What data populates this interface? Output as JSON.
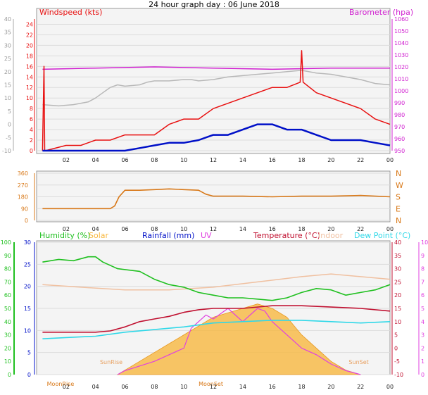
{
  "title": "24 hour graph day : 06 June 2018",
  "colors": {
    "wind": "#e81010",
    "wind_avg": "#0010c8",
    "baro": "#d020d0",
    "temp_grey": "#b8b8b8",
    "dir": "#d87818",
    "humidity": "#20c020",
    "solar": "#f8b840",
    "rain": "#0010c8",
    "uv": "#e040e0",
    "temperature": "#c01030",
    "indoor": "#f0c0a0",
    "dewpoint": "#30d8e8",
    "grid": "#dcdcdc",
    "plot_bg": "#f4f4f4"
  },
  "x_ticks": [
    "02",
    "04",
    "06",
    "08",
    "10",
    "12",
    "14",
    "16",
    "18",
    "20",
    "22",
    "00"
  ],
  "chart_data": [
    {
      "type": "line",
      "id": "wind_baro",
      "x_range": [
        0,
        24
      ],
      "left_axis": {
        "label": "Windspeed (kts)",
        "ticks": [
          0,
          2,
          4,
          6,
          8,
          10,
          12,
          14,
          16,
          18,
          20,
          22,
          24
        ],
        "range": [
          0,
          25
        ]
      },
      "far_left_axis": {
        "ticks": [
          -10,
          -5,
          0,
          5,
          10,
          15,
          20,
          25,
          30,
          35,
          40
        ],
        "range": [
          -10,
          40
        ]
      },
      "right_axis": {
        "label": "Barometer (hpa)",
        "ticks": [
          950,
          960,
          970,
          980,
          990,
          1000,
          1010,
          1020,
          1030,
          1040,
          1050,
          1060
        ],
        "range": [
          950,
          1060
        ]
      },
      "series": [
        {
          "key": "grey",
          "axis": "far_left",
          "x": [
            0.4,
            1.5,
            2.5,
            3.5,
            4.0,
            4.5,
            5.0,
            5.5,
            6.0,
            7.0,
            7.5,
            8.0,
            9.0,
            10.0,
            10.5,
            11.0,
            12.0,
            13.0,
            14.0,
            15.0,
            16.0,
            17.0,
            18.0,
            19.0,
            20.0,
            21.0,
            22.0,
            23.0,
            24.0
          ],
          "y": [
            7.5,
            7,
            7.5,
            8.5,
            10,
            12,
            14,
            15,
            14.5,
            15,
            16,
            16.5,
            16.5,
            17,
            17,
            16.5,
            17,
            18,
            18.5,
            19,
            19.5,
            20,
            20.5,
            19.5,
            19,
            18,
            17,
            15.5,
            15
          ]
        },
        {
          "key": "baro",
          "axis": "right",
          "x": [
            0.4,
            4,
            8,
            12,
            16,
            20,
            24
          ],
          "y": [
            1018,
            1019,
            1020,
            1019,
            1018,
            1019,
            1019
          ]
        },
        {
          "key": "wind",
          "axis": "left",
          "x": [
            0.4,
            0.5,
            0.55,
            0.6,
            2,
            3,
            4,
            5,
            6,
            7,
            8,
            9,
            10,
            11,
            12,
            13,
            14,
            15,
            16,
            17,
            17.9,
            18,
            18.1,
            19,
            20,
            21,
            22,
            23,
            24
          ],
          "y": [
            0,
            16,
            0,
            0,
            1,
            1,
            2,
            2,
            3,
            3,
            3,
            5,
            6,
            6,
            8,
            9,
            10,
            11,
            12,
            12,
            13,
            19,
            13,
            11,
            10,
            9,
            8,
            6,
            5
          ]
        },
        {
          "key": "wind_avg",
          "axis": "left",
          "x": [
            0.4,
            2,
            4,
            5,
            6,
            7,
            8,
            9,
            10,
            11,
            12,
            13,
            14,
            15,
            16,
            17,
            18,
            19,
            20,
            21,
            22,
            23,
            24
          ],
          "y": [
            0,
            0,
            0,
            0,
            0,
            0.5,
            1,
            1.5,
            1.5,
            2,
            3,
            3,
            4,
            5,
            5,
            4,
            4,
            3,
            2,
            2,
            2,
            1.5,
            1
          ]
        }
      ]
    },
    {
      "type": "line",
      "id": "wind_direction",
      "x_range": [
        0,
        24
      ],
      "left_axis": {
        "ticks": [
          0,
          90,
          180,
          270,
          360
        ],
        "range": [
          0,
          360
        ]
      },
      "right_axis": {
        "ticks": [
          "N",
          "W",
          "S",
          "E",
          "N"
        ]
      },
      "series": [
        {
          "key": "dir",
          "x": [
            0.4,
            4,
            5,
            5.3,
            5.6,
            6,
            7,
            8,
            9,
            10,
            11,
            11.5,
            12,
            14,
            16,
            18,
            20,
            22,
            24
          ],
          "y": [
            90,
            90,
            90,
            110,
            180,
            230,
            230,
            235,
            240,
            235,
            230,
            200,
            185,
            185,
            180,
            185,
            185,
            190,
            180
          ]
        }
      ]
    },
    {
      "type": "area",
      "id": "temp_hum_solar",
      "x_range": [
        0,
        24
      ],
      "legend": [
        "Humidity (%)",
        "Solar",
        "Rainfall (mm)",
        "UV",
        "Temperature (°C)",
        "Indoor",
        "Dew Point (°C)"
      ],
      "axes": {
        "humidity": {
          "ticks": [
            0,
            10,
            20,
            30,
            40,
            50,
            60,
            70,
            80,
            90,
            100
          ],
          "range": [
            0,
            100
          ]
        },
        "rain": {
          "ticks": [
            0,
            5,
            10,
            15,
            20,
            25,
            30
          ],
          "range": [
            0,
            30
          ]
        },
        "temperature": {
          "ticks": [
            -10,
            -5,
            0,
            5,
            10,
            15,
            20,
            25,
            30,
            35,
            40
          ],
          "range": [
            -10,
            40
          ]
        },
        "uv": {
          "ticks": [
            0,
            1,
            2,
            3,
            4,
            5,
            6,
            7,
            8,
            9,
            10
          ],
          "range": [
            0,
            10
          ]
        }
      },
      "annotations": [
        "SunRise",
        "SunSet",
        "MoonRise",
        "MoonSet"
      ],
      "series": [
        {
          "key": "indoor",
          "axis": "temperature",
          "x": [
            0.4,
            3,
            6,
            9,
            12,
            15,
            18,
            20,
            22,
            24
          ],
          "y": [
            24,
            23,
            22,
            22,
            23,
            25,
            27,
            28,
            27,
            26
          ]
        },
        {
          "key": "humidity",
          "axis": "humidity",
          "x": [
            0.4,
            1.5,
            2.5,
            3.5,
            4.0,
            4.5,
            5.5,
            7.0,
            8.0,
            9.0,
            10.0,
            11.0,
            12.0,
            13.0,
            14.0,
            15.0,
            16.0,
            17.0,
            18.0,
            19.0,
            20.0,
            21.0,
            22.0,
            23.0,
            24.0
          ],
          "y": [
            85,
            87,
            86,
            89,
            89,
            85,
            80,
            78,
            72,
            68,
            66,
            62,
            60,
            58,
            58,
            57,
            56,
            58,
            62,
            65,
            64,
            60,
            62,
            64,
            68
          ]
        },
        {
          "key": "temperature",
          "axis": "temperature",
          "x": [
            0.4,
            2,
            4,
            5,
            6,
            7,
            8,
            9,
            10,
            11,
            12,
            14,
            16,
            18,
            20,
            22,
            24
          ],
          "y": [
            6,
            6,
            6,
            6.5,
            8,
            10,
            11,
            12,
            13.5,
            14.5,
            15,
            15,
            16,
            16,
            15.5,
            15,
            14
          ]
        },
        {
          "key": "dewpoint",
          "axis": "temperature",
          "x": [
            0.4,
            2,
            4,
            6,
            8,
            10,
            12,
            14,
            16,
            18,
            20,
            22,
            24
          ],
          "y": [
            3.5,
            4,
            4.5,
            6,
            7,
            8,
            9.5,
            10,
            10.5,
            10.5,
            10,
            9.5,
            10
          ]
        },
        {
          "key": "solar",
          "axis": "rain",
          "x": [
            5.5,
            6,
            7,
            8,
            9,
            10,
            11,
            12,
            13,
            14,
            15,
            16,
            17,
            18,
            19,
            20,
            21,
            22
          ],
          "y": [
            0,
            1,
            3,
            5,
            7,
            9,
            11,
            13,
            14,
            15,
            16,
            15,
            13,
            9,
            6,
            3,
            1,
            0
          ]
        },
        {
          "key": "uv",
          "axis": "uv",
          "x": [
            5.5,
            6,
            8,
            10,
            10.5,
            11,
            11.5,
            12,
            13,
            14,
            15,
            15.5,
            16,
            17,
            18,
            19,
            20,
            21,
            22
          ],
          "y": [
            0,
            0.3,
            1,
            2,
            3.5,
            4,
            4.5,
            4.2,
            5,
            4,
            5,
            4.8,
            4,
            3,
            2,
            1.5,
            0.8,
            0.3,
            0
          ]
        }
      ]
    }
  ]
}
